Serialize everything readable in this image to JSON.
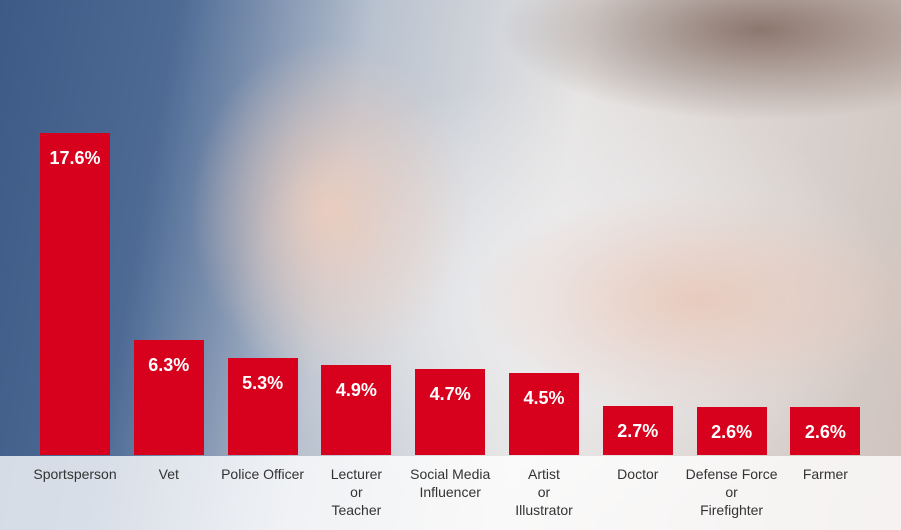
{
  "chart_data": {
    "type": "bar",
    "categories": [
      "Sportsperson",
      "Vet",
      "Police Officer",
      "Lecturer\nor\nTeacher",
      "Social Media\nInfluencer",
      "Artist\nor\nIllustrator",
      "Doctor",
      "Defense Force\nor\nFirefighter",
      "Farmer"
    ],
    "values": [
      17.6,
      6.3,
      5.3,
      4.9,
      4.7,
      4.5,
      2.7,
      2.6,
      2.6
    ],
    "value_labels": [
      "17.6%",
      "6.3%",
      "5.3%",
      "4.9%",
      "4.7%",
      "4.5%",
      "2.7%",
      "2.6%",
      "2.6%"
    ],
    "color": "#d7001d"
  }
}
